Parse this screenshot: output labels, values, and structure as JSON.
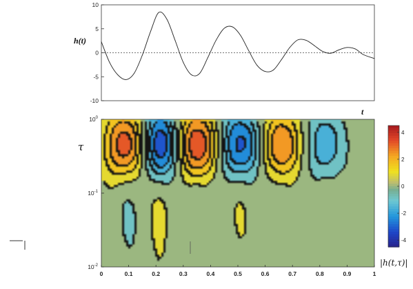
{
  "chart_data": [
    {
      "type": "line",
      "ylabel": "h(t)",
      "xlabel": "t",
      "xlim": [
        0,
        1
      ],
      "ylim": [
        -10,
        10
      ],
      "yticks": [
        "10",
        "5",
        "0",
        "-5",
        "-10"
      ],
      "zero_line": "dotted",
      "x": [
        0,
        0.03,
        0.06,
        0.09,
        0.12,
        0.15,
        0.18,
        0.21,
        0.24,
        0.27,
        0.3,
        0.33,
        0.36,
        0.39,
        0.42,
        0.45,
        0.48,
        0.51,
        0.54,
        0.57,
        0.6,
        0.63,
        0.66,
        0.69,
        0.72,
        0.75,
        0.78,
        0.81,
        0.84,
        0.87,
        0.9,
        0.93,
        0.96,
        1.0
      ],
      "y": [
        2.3,
        -2.0,
        -4.6,
        -5.6,
        -4.3,
        -0.5,
        4.4,
        8.4,
        7.0,
        2.6,
        -2.0,
        -4.6,
        -4.3,
        -1.0,
        2.6,
        5.1,
        5.4,
        3.6,
        0.4,
        -2.6,
        -3.9,
        -3.6,
        -1.4,
        1.1,
        2.7,
        2.6,
        1.5,
        0.3,
        -0.1,
        0.6,
        1.1,
        0.8,
        -0.4,
        -1.2
      ]
    },
    {
      "type": "heatmap",
      "ylabel": "τ",
      "xlim": [
        0,
        1
      ],
      "xticks": [
        "0",
        "0.1",
        "0.2",
        "0.3",
        "0.4",
        "0.5",
        "0.6",
        "0.7",
        "0.8",
        "0.9",
        "1"
      ],
      "yscale": "log",
      "yticks": [
        "10^0",
        "10^-1",
        "10^-2"
      ],
      "colorbar": {
        "label": "|h(t,τ)|",
        "ticks": [
          "4",
          "2",
          "0",
          "-2",
          "-4"
        ],
        "range": [
          -4.5,
          4.5
        ]
      },
      "blobs": [
        {
          "t": 0.09,
          "amp": 3.8,
          "wt": 0.06
        },
        {
          "t": 0.21,
          "amp": -4.6,
          "wt": 0.055
        },
        {
          "t": 0.345,
          "amp": 4.0,
          "wt": 0.065
        },
        {
          "t": 0.5,
          "amp": -3.5,
          "wt": 0.06
        },
        {
          "t": 0.655,
          "amp": 3.1,
          "wt": 0.055
        },
        {
          "t": 0.815,
          "amp": -2.1,
          "wt": 0.05
        }
      ]
    }
  ]
}
